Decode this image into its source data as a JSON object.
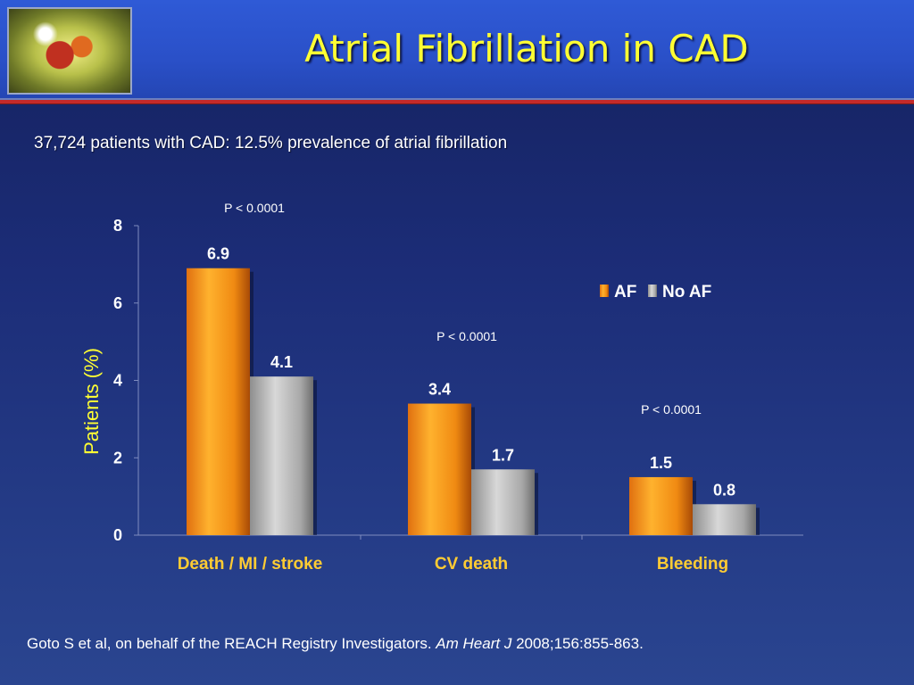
{
  "slide": {
    "title": "Atrial Fibrillation in CAD",
    "subtitle": "37,724 patients with CAD: 12.5% prevalence of atrial fibrillation",
    "citation_authors": "Goto S et al, on behalf of the REACH Registry Investigators.",
    "citation_journal": "Am Heart J",
    "citation_ref": "2008;156:855-863."
  },
  "colors": {
    "title": "#ffff33",
    "af_bar": "#f2901a",
    "no_af_bar": "#b4b4b4",
    "ylabel": "#ffff33",
    "category_label": "#ffcc33",
    "header_rule": "#c42a2a"
  },
  "chart_data": {
    "type": "bar",
    "categories": [
      "Death / MI / stroke",
      "CV death",
      "Bleeding"
    ],
    "series": [
      {
        "name": "AF",
        "values": [
          6.9,
          3.4,
          1.5
        ]
      },
      {
        "name": "No AF",
        "values": [
          4.1,
          1.7,
          0.8
        ]
      }
    ],
    "data_labels": [
      [
        "6.9",
        "3.4",
        "1.5"
      ],
      [
        "4.1",
        "1.7",
        "0.8"
      ]
    ],
    "annotations": [
      "P < 0.0001",
      "P < 0.0001",
      "P < 0.0001"
    ],
    "ylabel": "Patients (%)",
    "ylim": [
      0,
      8
    ],
    "yticks": [
      0,
      2,
      4,
      6,
      8
    ],
    "legend_placement": "top-right",
    "grid": false
  }
}
